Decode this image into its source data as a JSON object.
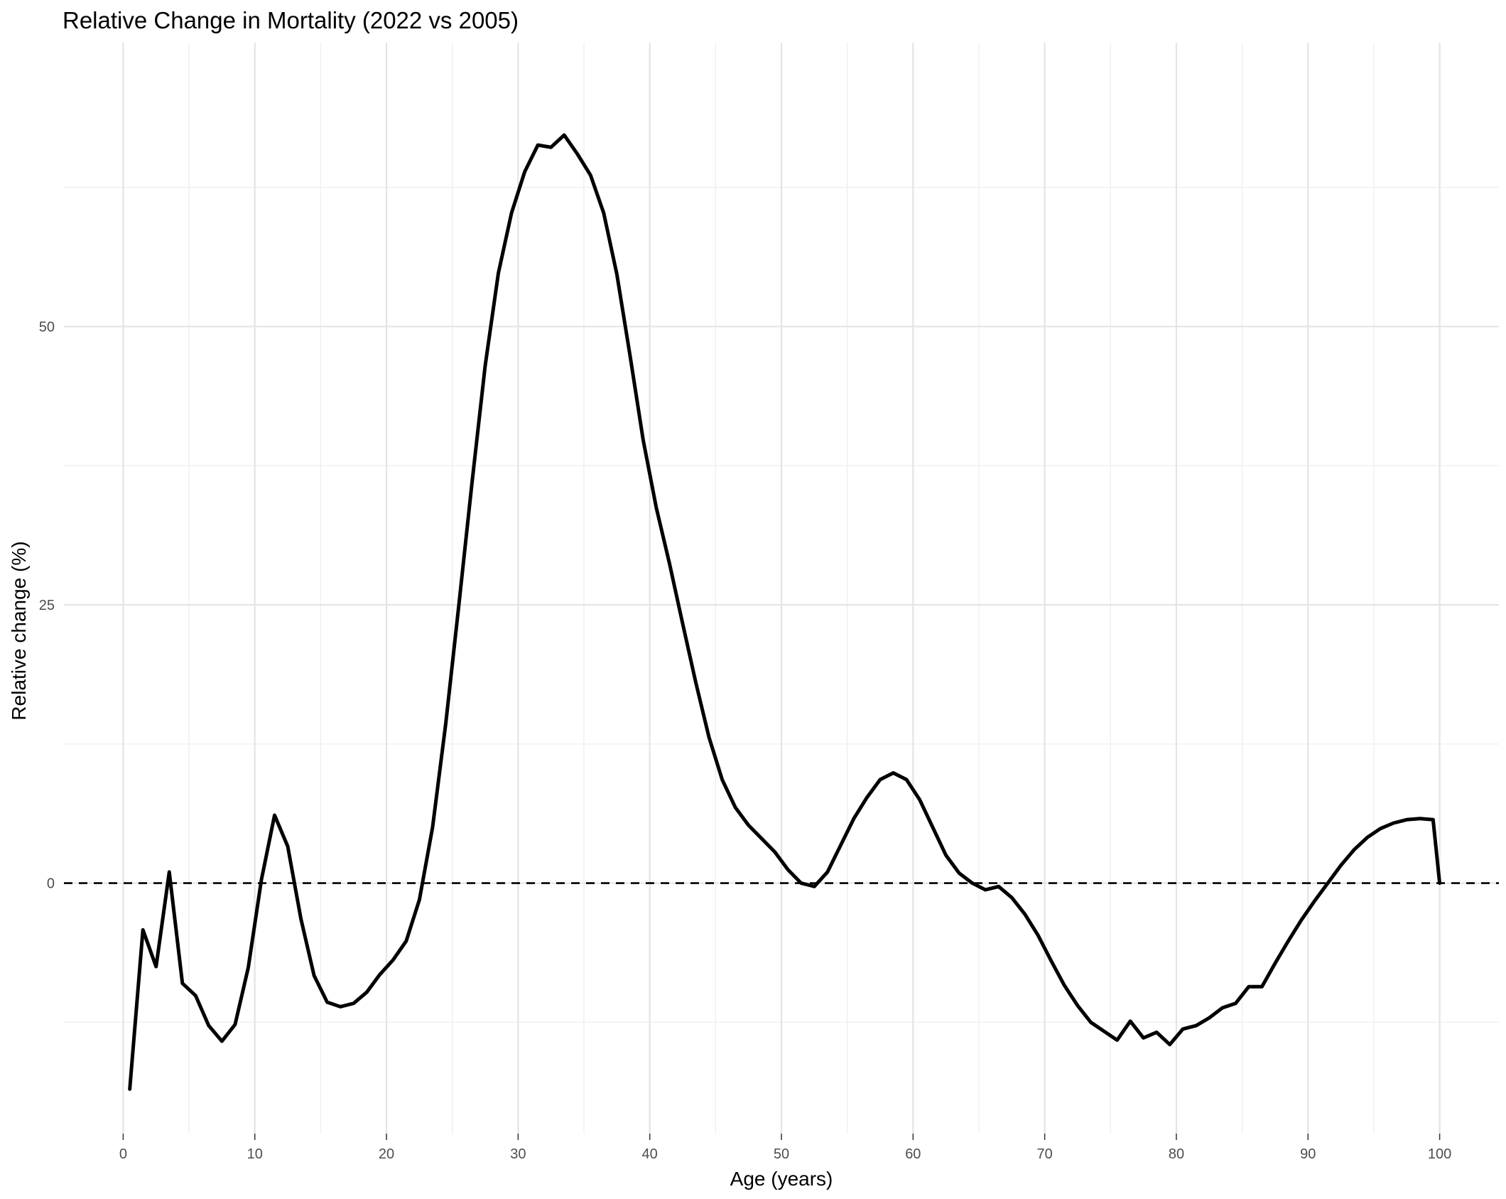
{
  "chart_data": {
    "type": "line",
    "title": "Relative Change in Mortality (2022 vs 2005)",
    "xlabel": "Age (years)",
    "ylabel": "Relative change (%)",
    "xlim": [
      -4.5,
      104.5
    ],
    "ylim": [
      -22.5,
      75.5
    ],
    "x_ticks": [
      0,
      10,
      20,
      30,
      40,
      50,
      60,
      70,
      80,
      90,
      100
    ],
    "x_tick_labels": [
      "0",
      "10",
      "20",
      "30",
      "40",
      "50",
      "60",
      "70",
      "80",
      "90",
      "100"
    ],
    "x_minor_ticks": [
      5,
      15,
      25,
      35,
      45,
      55,
      65,
      75,
      85,
      95
    ],
    "y_ticks": [
      0,
      25,
      50
    ],
    "y_tick_labels": [
      "0",
      "25",
      "50"
    ],
    "y_minor_ticks": [
      -12.5,
      12.5,
      37.5,
      62.5
    ],
    "grid": true,
    "legend": "none",
    "reference_line": {
      "y": 0,
      "style": "dashed",
      "color": "#000000"
    },
    "series": [
      {
        "color": "#000000",
        "x": [
          0.5,
          1.5,
          2.5,
          3.5,
          4.5,
          5.5,
          6.5,
          7.5,
          8.5,
          9.5,
          10.5,
          11.5,
          12.5,
          13.5,
          14.5,
          15.5,
          16.5,
          17.5,
          18.5,
          19.5,
          20.5,
          21.5,
          22.5,
          23.5,
          24.5,
          25.5,
          26.5,
          27.5,
          28.5,
          29.5,
          30.5,
          31.5,
          32.5,
          33.5,
          34.5,
          35.5,
          36.5,
          37.5,
          38.5,
          39.5,
          40.5,
          41.5,
          42.5,
          43.5,
          44.5,
          45.5,
          46.5,
          47.5,
          48.5,
          49.5,
          50.5,
          51.5,
          52.5,
          53.5,
          54.5,
          55.5,
          56.5,
          57.5,
          58.5,
          59.5,
          60.5,
          61.5,
          62.5,
          63.5,
          64.5,
          65.5,
          66.5,
          67.5,
          68.5,
          69.5,
          70.5,
          71.5,
          72.5,
          73.5,
          74.5,
          75.5,
          76.5,
          77.5,
          78.5,
          79.5,
          80.5,
          81.5,
          82.5,
          83.5,
          84.5,
          85.5,
          86.5,
          87.5,
          88.5,
          89.5,
          90.5,
          91.5,
          92.5,
          93.5,
          94.5,
          95.5,
          96.5,
          97.5,
          98.5,
          99.5,
          100
        ],
        "y": [
          -18.5,
          -4.2,
          -7.5,
          1,
          -9,
          -10.1,
          -12.8,
          -14.2,
          -12.7,
          -7.6,
          0.3,
          6.1,
          3.3,
          -3.2,
          -8.3,
          -10.7,
          -11.1,
          -10.8,
          -9.8,
          -8.2,
          -6.9,
          -5.2,
          -1.5,
          5,
          14.3,
          25,
          36,
          46.5,
          54.8,
          60.2,
          63.9,
          66.3,
          66.1,
          67.2,
          65.5,
          63.6,
          60.2,
          54.7,
          47.4,
          39.8,
          33.7,
          28.7,
          23.3,
          18,
          13.1,
          9.3,
          6.8,
          5.2,
          4,
          2.8,
          1.2,
          0,
          -0.3,
          1,
          3.4,
          5.8,
          7.7,
          9.3,
          9.9,
          9.3,
          7.5,
          5,
          2.5,
          0.9,
          0,
          -0.6,
          -0.3,
          -1.3,
          -2.8,
          -4.7,
          -7,
          -9.2,
          -11,
          -12.5,
          -13.3,
          -14.1,
          -12.4,
          -13.9,
          -13.4,
          -14.5,
          -13.1,
          -12.8,
          -12.1,
          -11.2,
          -10.8,
          -9.3,
          -9.3,
          -7.2,
          -5.2,
          -3.3,
          -1.6,
          0,
          1.6,
          3,
          4.1,
          4.9,
          5.4,
          5.7,
          5.8,
          5.7,
          0
        ]
      }
    ]
  }
}
